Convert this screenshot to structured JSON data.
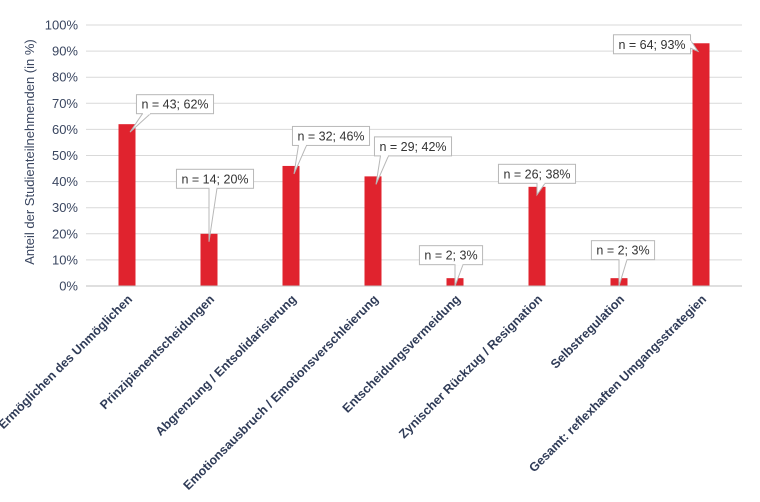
{
  "chart_data": {
    "type": "bar",
    "title": "",
    "xlabel": "",
    "ylabel": "Anteil der Studienteilnehmenden (in %)",
    "ylim": [
      0,
      100
    ],
    "yticks": [
      "0%",
      "10%",
      "20%",
      "30%",
      "40%",
      "50%",
      "60%",
      "70%",
      "80%",
      "90%",
      "100%"
    ],
    "grid": true,
    "bar_color": "#e0232e",
    "categories": [
      "Ermöglichen des Unmöglichen",
      "Prinzipienentscheidungen",
      "Abgrenzung / Entsolidarisierung",
      "Emotionsausbruch / Emotionsverschleierung",
      "Entscheidungsvermeidung",
      "Zynischer Rückzug / Resignation",
      "Selbstregulation",
      "Gesamt: reflexhaften Umgangsstrategien"
    ],
    "values": [
      62,
      20,
      46,
      42,
      3,
      38,
      3,
      93
    ],
    "data_labels": [
      "n = 43; 62%",
      "n = 14; 20%",
      "n = 32; 46%",
      "n = 29; 42%",
      "n = 2; 3%",
      "n = 26; 38%",
      "n = 2; 3%",
      "n = 64; 93%"
    ]
  }
}
